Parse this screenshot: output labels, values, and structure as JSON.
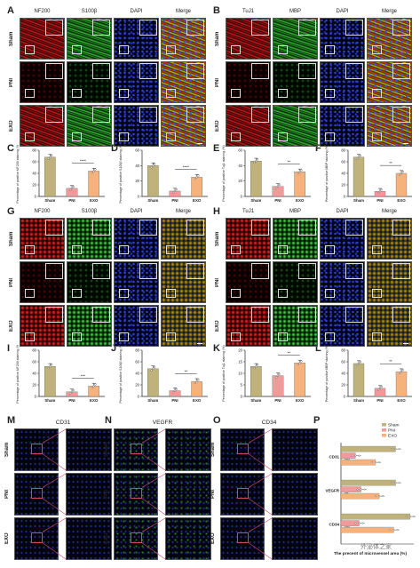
{
  "panel_letters": {
    "A": "A",
    "B": "B",
    "C": "C",
    "D": "D",
    "E": "E",
    "F": "F",
    "G": "G",
    "H": "H",
    "I": "I",
    "J": "J",
    "K": "K",
    "L": "L",
    "M": "M",
    "N": "N",
    "O": "O",
    "P": "P"
  },
  "rows": [
    "Sham",
    "PNI",
    "EXO"
  ],
  "panel_A": {
    "cols": [
      "NF200",
      "S100β",
      "DAPI",
      "Merge"
    ]
  },
  "panel_B": {
    "cols": [
      "TuJ1",
      "MBP",
      "DAPI",
      "Merge"
    ]
  },
  "panel_G": {
    "cols": [
      "NF200",
      "S100β",
      "DAPI",
      "Merge"
    ]
  },
  "panel_H": {
    "cols": [
      "TuJ1",
      "MBP",
      "DAPI",
      "Merge"
    ]
  },
  "panel_M": {
    "title": "CD31"
  },
  "panel_N": {
    "title": "VEGFR"
  },
  "panel_O": {
    "title": "CD34"
  },
  "colors": {
    "sham": "#bfb27a",
    "pni": "#f29a9a",
    "exo": "#f6b27d",
    "red": "#c41818",
    "green": "#2db32d",
    "blue": "#1d2fa0",
    "pink": "#c84a6a"
  },
  "chart_data": [
    {
      "id": "C",
      "type": "bar",
      "categories": [
        "Sham",
        "PNI",
        "EXO"
      ],
      "values": [
        68,
        14,
        44
      ],
      "ylabel": "Percentage of positive NF200 staining (%)",
      "ylim": [
        0,
        80
      ],
      "yticks": [
        0,
        20,
        40,
        60,
        80
      ],
      "sig": "****"
    },
    {
      "id": "D",
      "type": "bar",
      "categories": [
        "Sham",
        "PNI",
        "EXO"
      ],
      "values": [
        40,
        7,
        25
      ],
      "ylabel": "Percentage of positive S100β staining (%)",
      "ylim": [
        0,
        60
      ],
      "yticks": [
        0,
        20,
        40,
        60
      ],
      "sig": "****"
    },
    {
      "id": "E",
      "type": "bar",
      "categories": [
        "Sham",
        "PNI",
        "EXO"
      ],
      "values": [
        46,
        13,
        32
      ],
      "ylabel": "Percentage of positive Tuj1 staining (%)",
      "ylim": [
        0,
        60
      ],
      "yticks": [
        0,
        20,
        40,
        60
      ],
      "sig": "**"
    },
    {
      "id": "F",
      "type": "bar",
      "categories": [
        "Sham",
        "PNI",
        "EXO"
      ],
      "values": [
        68,
        9,
        40
      ],
      "ylabel": "Percentage of positive MBP staining (%)",
      "ylim": [
        0,
        80
      ],
      "yticks": [
        0,
        20,
        40,
        60,
        80
      ],
      "sig": "**"
    },
    {
      "id": "I",
      "type": "bar",
      "categories": [
        "Sham",
        "PNI",
        "EXO"
      ],
      "values": [
        52,
        8,
        18
      ],
      "ylabel": "Percentage of positive NF200 staining (%)",
      "ylim": [
        0,
        80
      ],
      "yticks": [
        0,
        20,
        40,
        60,
        80
      ],
      "sig": "***"
    },
    {
      "id": "J",
      "type": "bar",
      "categories": [
        "Sham",
        "PNI",
        "EXO"
      ],
      "values": [
        48,
        10,
        26
      ],
      "ylabel": "Percentage of positive S100β staining (%)",
      "ylim": [
        0,
        80
      ],
      "yticks": [
        0,
        20,
        40,
        60,
        80
      ],
      "sig": "**"
    },
    {
      "id": "K",
      "type": "bar",
      "categories": [
        "Sham",
        "PNI",
        "EXO"
      ],
      "values": [
        13,
        9,
        14.5
      ],
      "ylabel": "Percentage of positive Tuj1 staining (%)",
      "ylim": [
        0,
        20
      ],
      "yticks": [
        0,
        5,
        10,
        15,
        20
      ],
      "sig": "**"
    },
    {
      "id": "L",
      "type": "bar",
      "categories": [
        "Sham",
        "PNI",
        "EXO"
      ],
      "values": [
        57,
        14,
        43
      ],
      "ylabel": "Percentage of positive MBP staining (%)",
      "ylim": [
        0,
        80
      ],
      "yticks": [
        0,
        20,
        40,
        60,
        80
      ],
      "sig": "**"
    },
    {
      "id": "P",
      "type": "bar",
      "orientation": "horizontal",
      "categories": [
        "CD31",
        "VEGFR",
        "CD34"
      ],
      "series": [
        {
          "name": "Sham",
          "values": [
            30,
            30,
            38
          ]
        },
        {
          "name": "PNI",
          "values": [
            8,
            11,
            10
          ]
        },
        {
          "name": "EXO",
          "values": [
            19,
            21,
            29
          ]
        }
      ],
      "xlabel": "The precent of microvessel area (%)",
      "sig": [
        "****",
        "***",
        "****"
      ]
    }
  ],
  "watermark": "外泌体之家"
}
